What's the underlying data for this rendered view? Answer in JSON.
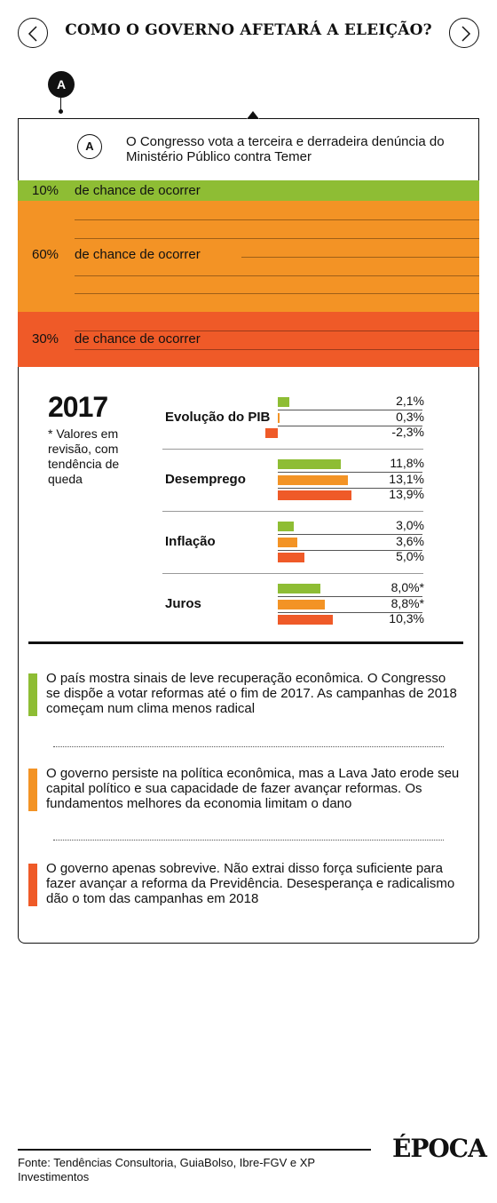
{
  "header": {
    "title": "COMO O GOVERNO AFETARÁ A ELEIÇÃO?",
    "prev_icon": "chevron-left-icon",
    "next_icon": "chevron-right-icon"
  },
  "marker": {
    "letter": "A"
  },
  "event": {
    "letter": "A",
    "text": "O Congresso vota a terceira e derradeira denúncia do Ministério Público contra Temer"
  },
  "probabilities": [
    {
      "pct": "10%",
      "label": "de chance de ocorrer",
      "color": "#8ebd34",
      "value": 10
    },
    {
      "pct": "60%",
      "label": "de chance de ocorrer",
      "color": "#f39325",
      "value": 60
    },
    {
      "pct": "30%",
      "label": "de chance de ocorrer",
      "color": "#ef5a28",
      "value": 30
    }
  ],
  "outlook": {
    "year": "2017",
    "note": "* Valores em revisão, com tendência de queda"
  },
  "chart_data": {
    "type": "bar",
    "series_colors": [
      "#8ebd34",
      "#f39325",
      "#ef5a28"
    ],
    "groups": [
      {
        "name": "Evolução do PIB",
        "values": [
          2.1,
          0.3,
          -2.3
        ],
        "labels": [
          "2,1%",
          "0,3%",
          "-2,3%"
        ]
      },
      {
        "name": "Desemprego",
        "values": [
          11.8,
          13.1,
          13.9
        ],
        "labels": [
          "11,8%",
          "13,1%",
          "13,9%"
        ]
      },
      {
        "name": "Inflação",
        "values": [
          3.0,
          3.6,
          5.0
        ],
        "labels": [
          "3,0%",
          "3,6%",
          "5,0%"
        ]
      },
      {
        "name": "Juros",
        "values": [
          8.0,
          8.8,
          10.3
        ],
        "labels": [
          "8,0%*",
          "8,8%*",
          "10,3%"
        ]
      }
    ]
  },
  "scenarios": [
    {
      "color": "#8ebd34",
      "text": "O país mostra sinais de leve recuperação econômica. O Congresso se dispõe a votar reformas até o fim de 2017. As campanhas de 2018 começam num clima menos radical"
    },
    {
      "color": "#f39325",
      "text": "O governo persiste na política econômica, mas a Lava Jato erode seu capital político e sua capacidade de fazer avançar reformas. Os fundamentos melhores da economia limitam o dano"
    },
    {
      "color": "#ef5a28",
      "text": "O governo apenas sobrevive. Não extrai disso força suficiente para fazer avançar a reforma da Previdência. Desesperança e radicalismo dão o tom das campanhas em 2018"
    }
  ],
  "footer": {
    "source": "Fonte:  Tendências Consultoria,  GuiaBolso, Ibre-FGV e XP Investimentos",
    "logo": "ÉPOCA"
  }
}
